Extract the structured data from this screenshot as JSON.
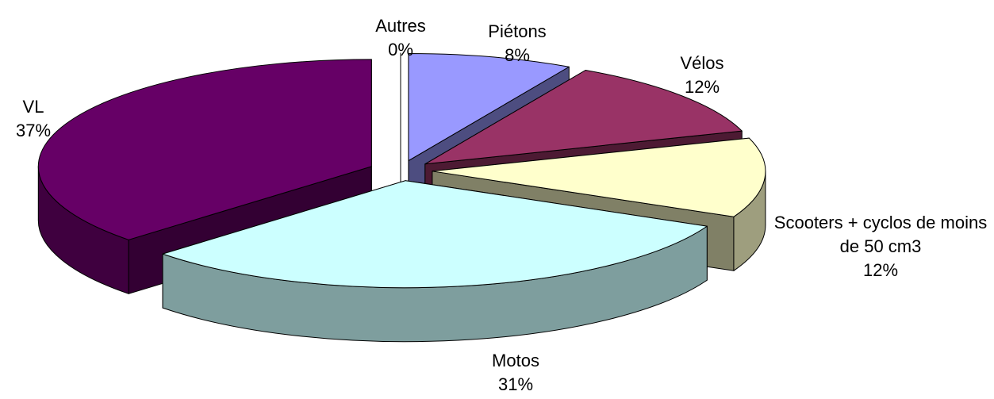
{
  "chart_data": {
    "type": "pie3d",
    "categories": [
      "Autres",
      "Piétons",
      "Vélos",
      "Scooters + cyclos de moins de 50 cm3",
      "Motos",
      "VL"
    ],
    "values": [
      0,
      8,
      12,
      12,
      31,
      37
    ],
    "value_labels": [
      "0%",
      "8%",
      "12%",
      "12%",
      "31%",
      "37%"
    ],
    "colors": [
      "#ffffff",
      "#9999ff",
      "#993366",
      "#ffffcc",
      "#ccffff",
      "#660066"
    ]
  }
}
